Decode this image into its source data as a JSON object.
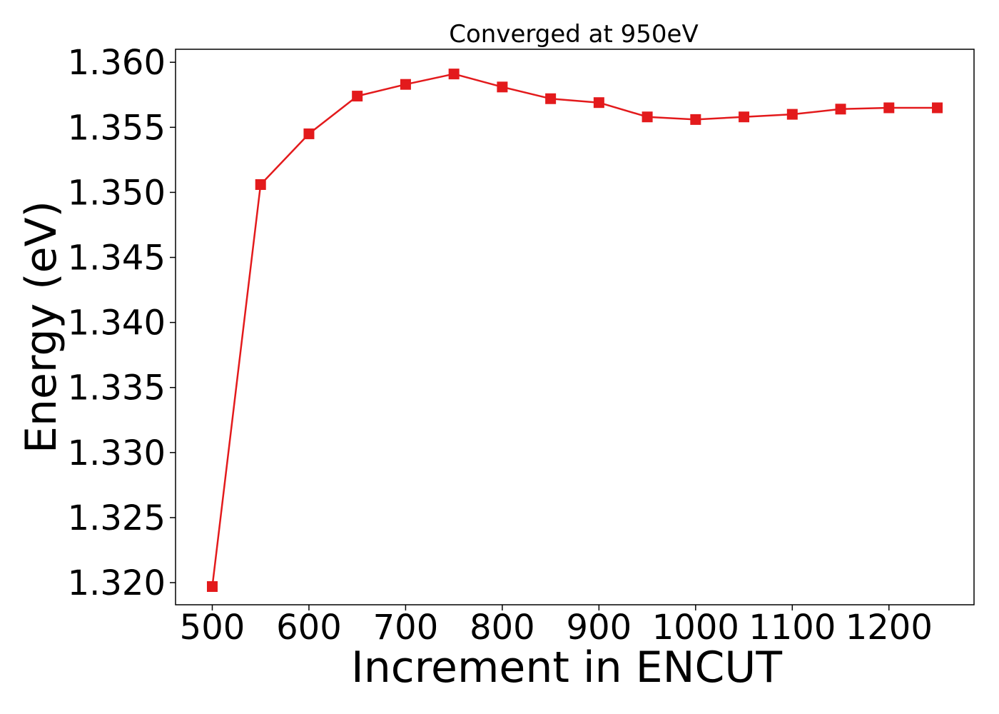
{
  "chart_data": {
    "type": "line",
    "title": "Converged at 950eV",
    "xlabel": "Increment in ENCUT",
    "ylabel": "Energy (eV)",
    "xlim": [
      462,
      1288
    ],
    "ylim": [
      1.3183,
      1.361
    ],
    "xticks": [
      500,
      600,
      700,
      800,
      900,
      1000,
      1100,
      1200
    ],
    "xtick_labels": [
      "500",
      "600",
      "700",
      "800",
      "900",
      "1000",
      "1100",
      "1200"
    ],
    "yticks": [
      1.32,
      1.325,
      1.33,
      1.335,
      1.34,
      1.345,
      1.35,
      1.355,
      1.36
    ],
    "ytick_labels": [
      "1.320",
      "1.325",
      "1.330",
      "1.335",
      "1.340",
      "1.345",
      "1.350",
      "1.355",
      "1.360"
    ],
    "grid": false,
    "series": [
      {
        "color": "#e31a1c",
        "marker": "square",
        "x": [
          500,
          550,
          600,
          650,
          700,
          750,
          800,
          850,
          900,
          950,
          1000,
          1050,
          1100,
          1150,
          1200,
          1250
        ],
        "y": [
          1.3197,
          1.3506,
          1.3545,
          1.3574,
          1.3583,
          1.3591,
          1.3581,
          1.3572,
          1.3569,
          1.3558,
          1.3556,
          1.3558,
          1.356,
          1.3564,
          1.3565,
          1.3565
        ]
      }
    ]
  }
}
